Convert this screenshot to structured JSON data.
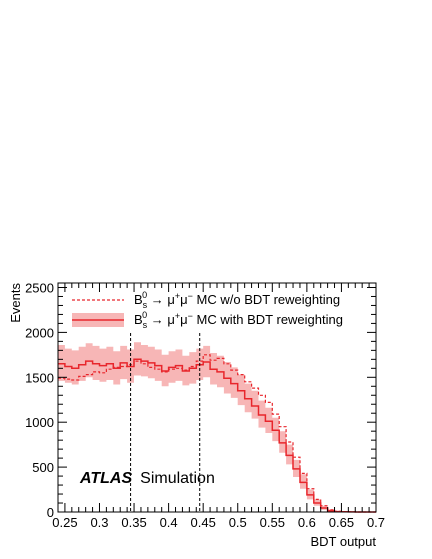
{
  "chart_data": {
    "type": "line",
    "title": "",
    "xlabel": "BDT output",
    "ylabel": "Events",
    "xlim": [
      0.24,
      0.7
    ],
    "ylim": [
      0,
      2550
    ],
    "x_ticks": [
      0.25,
      0.3,
      0.35,
      0.4,
      0.45,
      0.5,
      0.55,
      0.6,
      0.65,
      0.7
    ],
    "x_tick_labels": [
      "0.25",
      "0.3",
      "0.35",
      "0.4",
      "0.45",
      "0.5",
      "0.55",
      "0.6",
      "0.65",
      "0.7"
    ],
    "y_ticks": [
      0,
      500,
      1000,
      1500,
      2000,
      2500
    ],
    "y_tick_labels": [
      "0",
      "500",
      "1000",
      "1500",
      "2000",
      "2500"
    ],
    "bin_edges": [
      0.24,
      0.25,
      0.26,
      0.27,
      0.28,
      0.29,
      0.3,
      0.31,
      0.32,
      0.33,
      0.34,
      0.35,
      0.36,
      0.37,
      0.38,
      0.39,
      0.4,
      0.41,
      0.42,
      0.43,
      0.44,
      0.45,
      0.46,
      0.47,
      0.48,
      0.49,
      0.5,
      0.51,
      0.52,
      0.53,
      0.54,
      0.55,
      0.56,
      0.57,
      0.58,
      0.59,
      0.6,
      0.61,
      0.62,
      0.63,
      0.64,
      0.65,
      0.66,
      0.67,
      0.68,
      0.69,
      0.7
    ],
    "series": [
      {
        "style": "dashed",
        "values": [
          1490,
          1480,
          1470,
          1510,
          1530,
          1560,
          1550,
          1590,
          1610,
          1620,
          1640,
          1680,
          1650,
          1610,
          1590,
          1560,
          1590,
          1600,
          1580,
          1620,
          1680,
          1750,
          1690,
          1710,
          1650,
          1580,
          1530,
          1450,
          1380,
          1300,
          1220,
          1090,
          950,
          780,
          610,
          430,
          260,
          140,
          70,
          25,
          8,
          3,
          1,
          0,
          0,
          0
        ],
        "legend_prefix": "B",
        "legend_sup": "0",
        "legend_sub": "s",
        "legend_decay": " → μ",
        "legend_mu1_sup": "+",
        "legend_mu2": "μ",
        "legend_mu2_sup": "−",
        "legend_suffix": " MC w/o BDT reweighting"
      },
      {
        "style": "solid",
        "values": [
          1650,
          1620,
          1600,
          1640,
          1680,
          1650,
          1630,
          1650,
          1600,
          1660,
          1620,
          1700,
          1680,
          1660,
          1630,
          1570,
          1610,
          1630,
          1570,
          1600,
          1640,
          1670,
          1590,
          1560,
          1490,
          1430,
          1350,
          1260,
          1180,
          1080,
          1010,
          910,
          770,
          630,
          480,
          330,
          190,
          100,
          45,
          15,
          5,
          2,
          1,
          0,
          0,
          0
        ],
        "band_lower": [
          1460,
          1440,
          1420,
          1460,
          1500,
          1470,
          1450,
          1470,
          1420,
          1480,
          1440,
          1520,
          1510,
          1490,
          1460,
          1400,
          1440,
          1460,
          1410,
          1430,
          1470,
          1500,
          1420,
          1390,
          1320,
          1270,
          1190,
          1110,
          1040,
          940,
          880,
          790,
          660,
          530,
          390,
          260,
          140,
          70,
          25,
          5,
          0,
          0,
          0,
          0,
          0,
          0
        ],
        "band_upper": [
          1860,
          1820,
          1800,
          1840,
          1880,
          1850,
          1820,
          1840,
          1790,
          1850,
          1810,
          1890,
          1860,
          1840,
          1810,
          1750,
          1790,
          1810,
          1740,
          1780,
          1820,
          1850,
          1770,
          1740,
          1670,
          1610,
          1530,
          1430,
          1350,
          1240,
          1160,
          1050,
          900,
          750,
          580,
          420,
          250,
          140,
          70,
          30,
          12,
          5,
          2,
          0,
          0,
          0
        ],
        "legend_prefix": "B",
        "legend_sup": "0",
        "legend_sub": "s",
        "legend_decay": " → μ",
        "legend_mu1_sup": "+",
        "legend_mu2": "μ",
        "legend_mu2_sup": "−",
        "legend_suffix": " MC with BDT reweighting"
      }
    ],
    "vertical_lines": [
      0.345,
      0.445
    ],
    "annotation_bold": "ATLAS",
    "annotation_normal": "Simulation",
    "legend_placement": "top",
    "colors": {
      "line": "#e8262c",
      "band": "#f7b6b6"
    }
  }
}
